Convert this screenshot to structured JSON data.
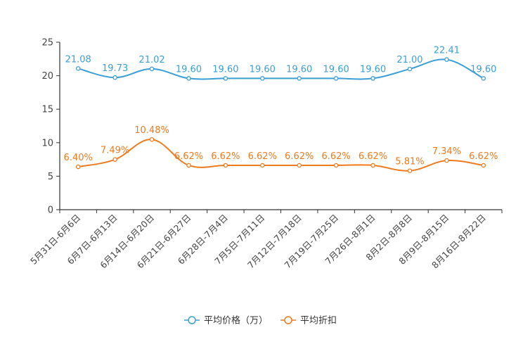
{
  "chart_data": {
    "type": "line",
    "categories": [
      "5月31日-6月6日",
      "6月7日-6月13日",
      "6月14日-6月20日",
      "6月21日-6月27日",
      "6月28日-7月4日",
      "7月5日-7月11日",
      "7月12日-7月18日",
      "7月19日-7月25日",
      "7月26日-8月1日",
      "8月2日-8月8日",
      "8月9日-8月15日",
      "8月16日-8月22日"
    ],
    "ylim": [
      0,
      25
    ],
    "yticks": [
      "0",
      "5",
      "10",
      "15",
      "20",
      "25"
    ],
    "series": [
      {
        "name": "平均价格（万）",
        "color": "#3a9fd6",
        "values": [
          21.08,
          19.73,
          21.02,
          19.6,
          19.6,
          19.6,
          19.6,
          19.6,
          19.6,
          21.0,
          22.41,
          19.6
        ],
        "labels": [
          "21.08",
          "19.73",
          "21.02",
          "19.60",
          "19.60",
          "19.60",
          "19.60",
          "19.60",
          "19.60",
          "21.00",
          "22.41",
          "19.60"
        ]
      },
      {
        "name": "平均折扣",
        "color": "#f07a1e",
        "values": [
          6.4,
          7.49,
          10.48,
          6.62,
          6.62,
          6.62,
          6.62,
          6.62,
          6.62,
          5.81,
          7.34,
          6.62
        ],
        "labels": [
          "6.40%",
          "7.49%",
          "10.48%",
          "6.62%",
          "6.62%",
          "6.62%",
          "6.62%",
          "6.62%",
          "6.62%",
          "5.81%",
          "7.34%",
          "6.62%"
        ]
      }
    ],
    "legend_position": "bottom-center"
  }
}
